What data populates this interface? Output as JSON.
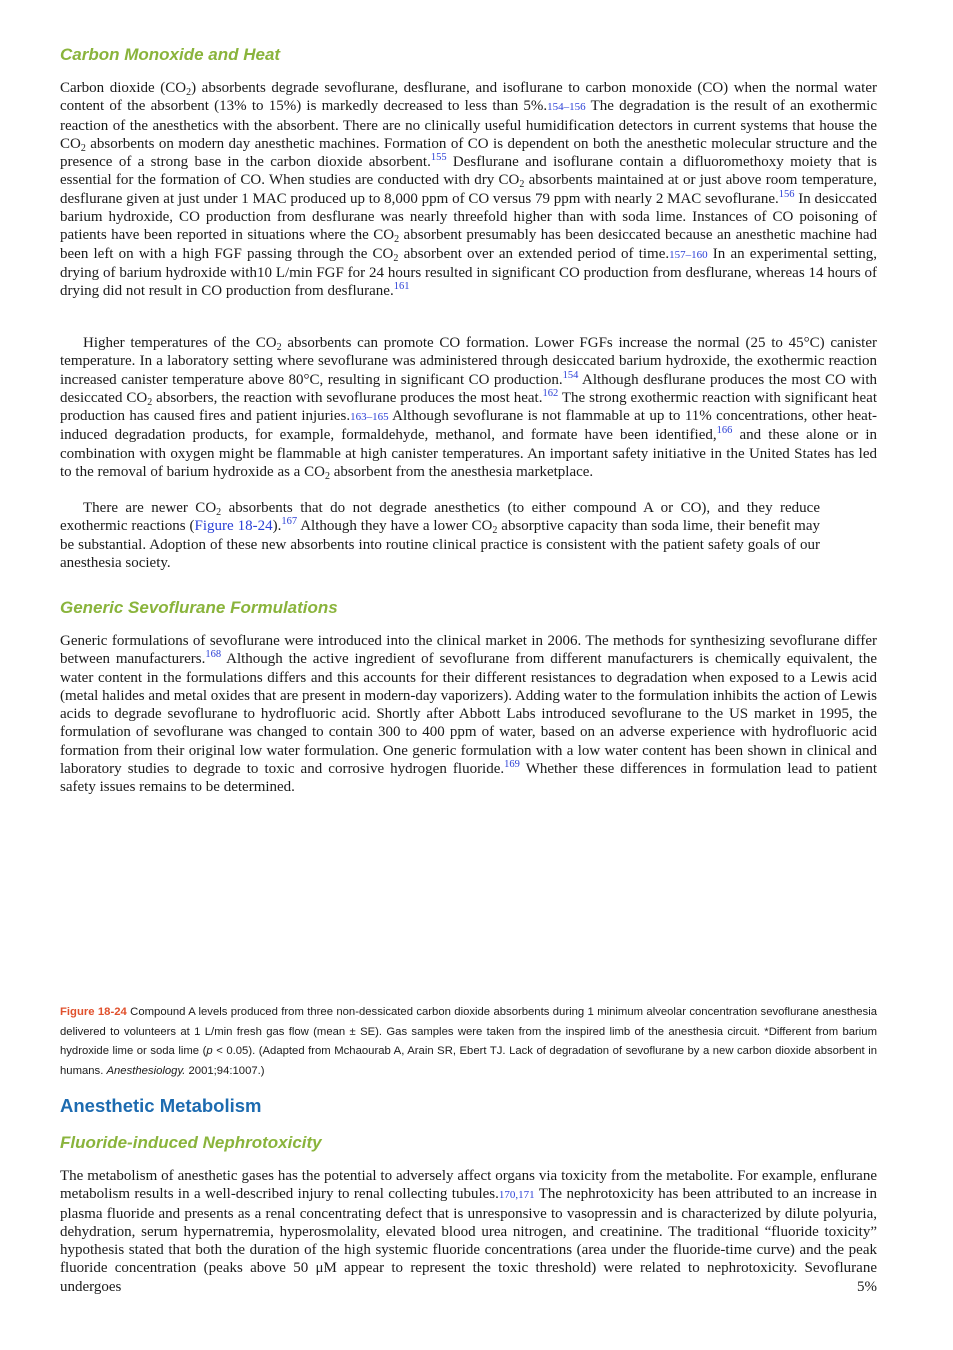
{
  "section1": {
    "heading": "Carbon Monoxide and Heat",
    "paragraphs": [
      [
        {
          "text": "Carbon dioxide (CO"
        },
        {
          "sub": "2"
        },
        {
          "text": ") absorbents degrade sevoflurane, desflurane, and isoflurane to carbon monoxide (CO) when the normal water content of the absorbent (13% to 15%) is markedly decreased to less than 5%."
        },
        {
          "ref": "154–156"
        },
        {
          "text": " The degradation is the result of an exothermic reaction of the anesthetics with the absorbent. There are no clinically useful humidification detectors in current systems that house the CO"
        },
        {
          "sub": "2"
        },
        {
          "text": " absorbents on modern day anesthetic machines. Formation of CO is dependent on both the anesthetic molecular structure and the presence of a strong base in the carbon dioxide absorbent."
        },
        {
          "sup": "155"
        },
        {
          "text": " Desflurane and isoflurane contain a difluoromethoxy moiety that is essential for the formation of CO. When studies are conducted with dry CO"
        },
        {
          "sub": "2"
        },
        {
          "text": " absorbents maintained at or just above room temperature, desflurane given at just under 1 MAC produced up to 8,000 ppm of CO versus 79 ppm with nearly 2 MAC sevoflurane."
        },
        {
          "sup": "156"
        },
        {
          "text": " In desiccated barium hydroxide, CO production from desflurane was nearly threefold higher than with soda lime. Instances of CO poisoning of patients have been reported in situations where the CO"
        },
        {
          "sub": "2"
        },
        {
          "text": " absorbent presumably has been desiccated because an anesthetic machine had been left on with a high FGF passing through the CO"
        },
        {
          "sub": "2"
        },
        {
          "text": " absorbent over an extended period of time."
        },
        {
          "ref": "157–160"
        },
        {
          "text": " In an experimental setting, drying of barium hydroxide with10 L/min FGF for 24 hours resulted in significant CO production from desflurane, whereas 14 hours of drying did not result in CO production from desflurane."
        },
        {
          "sup": "161"
        }
      ],
      [
        {
          "text": "Higher temperatures of the CO"
        },
        {
          "sub": "2"
        },
        {
          "text": " absorbents can promote CO formation. Lower FGFs increase the normal (25 to 45°C) canister temperature. In a laboratory setting where sevoflurane was administered through desiccated barium hydroxide, the exothermic reaction increased canister temperature above 80°C, resulting in significant CO production."
        },
        {
          "sup": "154"
        },
        {
          "text": " Although desflurane produces the most CO with desiccated CO"
        },
        {
          "sub": "2"
        },
        {
          "text": " absorbers, the reaction with sevoflurane produces the most heat."
        },
        {
          "sup": "162"
        },
        {
          "text": " The strong exothermic reaction with significant heat production has caused fires and patient injuries."
        },
        {
          "ref": "163–165"
        },
        {
          "text": " Although sevoflurane is not flammable at up to 11% concentrations, other heat-induced degradation products, for example, formaldehyde, methanol, and formate have been identified,"
        },
        {
          "sup": "166"
        },
        {
          "text": " and these alone or in combination with oxygen might be flammable at high canister temperatures. An important safety initiative in the United States has led to the removal of barium hydroxide as a CO"
        },
        {
          "sub": "2"
        },
        {
          "text": " absorbent from the anesthesia marketplace."
        }
      ],
      [
        {
          "text": "There are newer CO"
        },
        {
          "sub": "2"
        },
        {
          "text": " absorbents that do not degrade anesthetics (to either compound A or CO), and they reduce exothermic reactions ("
        },
        {
          "link": "Figure 18-24"
        },
        {
          "text": ")."
        },
        {
          "sup": "167"
        },
        {
          "text": " Although they have a lower CO"
        },
        {
          "sub": "2"
        },
        {
          "text": " absorptive capacity than soda lime, their benefit may be substantial. Adoption of these new absorbents into routine clinical practice is consistent with the patient safety goals of our anesthesia society."
        }
      ]
    ]
  },
  "section2": {
    "heading": "Generic Sevoflurane Formulations",
    "paragraphs": [
      [
        {
          "text": "Generic formulations of sevoflurane were introduced into the clinical market in 2006. The methods for synthesizing sevoflurane differ between manufacturers."
        },
        {
          "sup": "168"
        },
        {
          "text": " Although the active ingredient of sevoflurane from different manufacturers is chemically equivalent, the water content in the formulations differs and this accounts for their different resistances to degradation when exposed to a Lewis acid (metal halides and metal oxides that are present in modern-day vaporizers). Adding water to the formulation inhibits the action of Lewis acids to degrade sevoflurane to hydrofluoric acid. Shortly after Abbott Labs introduced sevoflurane to the US market in 1995, the formulation of sevoflurane was changed to contain 300 to 400 ppm of water, based on an adverse experience with hydrofluoric acid formation from their original low water formulation. One generic formulation with a low water content has been shown in clinical and laboratory studies to degrade to toxic and corrosive hydrogen fluoride."
        },
        {
          "sup": "169"
        },
        {
          "text": " Whether these differences in formulation lead to patient safety issues remains to be determined."
        }
      ]
    ]
  },
  "figure_caption": [
    {
      "label": "Figure 18-24"
    },
    {
      "text": " Compound A levels produced from three non-dessicated carbon dioxide absorbents during 1 minimum alveolar concentration sevoflurane anesthesia delivered to volunteers at 1 L/min fresh gas flow (mean ± SE). Gas samples were taken from the inspired limb of the anesthesia circuit. *Different from barium hydroxide lime or soda lime ("
    },
    {
      "italic": "p"
    },
    {
      "text": " < 0.05). (Adapted from Mchaourab A, Arain SR, Ebert TJ. Lack of degradation of sevoflurane by a new carbon dioxide absorbent in humans. "
    },
    {
      "italic": "Anesthesiology."
    },
    {
      "text": " 2001;94:1007.)"
    }
  ],
  "section3": {
    "heading": "Anesthetic Metabolism",
    "subheading": "Fluoride-induced Nephrotoxicity",
    "paragraphs": [
      [
        {
          "text": "The metabolism of anesthetic gases has the potential to adversely affect organs via toxicity from the metabolite. For example, enflurane metabolism results in a well-described injury to renal collecting tubules."
        },
        {
          "ref": "170,171"
        },
        {
          "text": " The nephrotoxicity has been attributed to an increase in plasma fluoride and presents as a renal concentrating defect that is unresponsive to vasopressin and is characterized by dilute polyuria, dehydration, serum hypernatremia, hyperosmolality, elevated blood urea nitrogen, and creatinine. The traditional “fluoride toxicity” hypothesis stated that both the duration of the high systemic fluoride concentrations (area under the fluoride-time curve) and the peak fluoride concentration (peaks above 50 μM appear to represent the toxic threshold) were related to nephrotoxicity. Sevoflurane undergoes 5%"
        }
      ]
    ]
  }
}
